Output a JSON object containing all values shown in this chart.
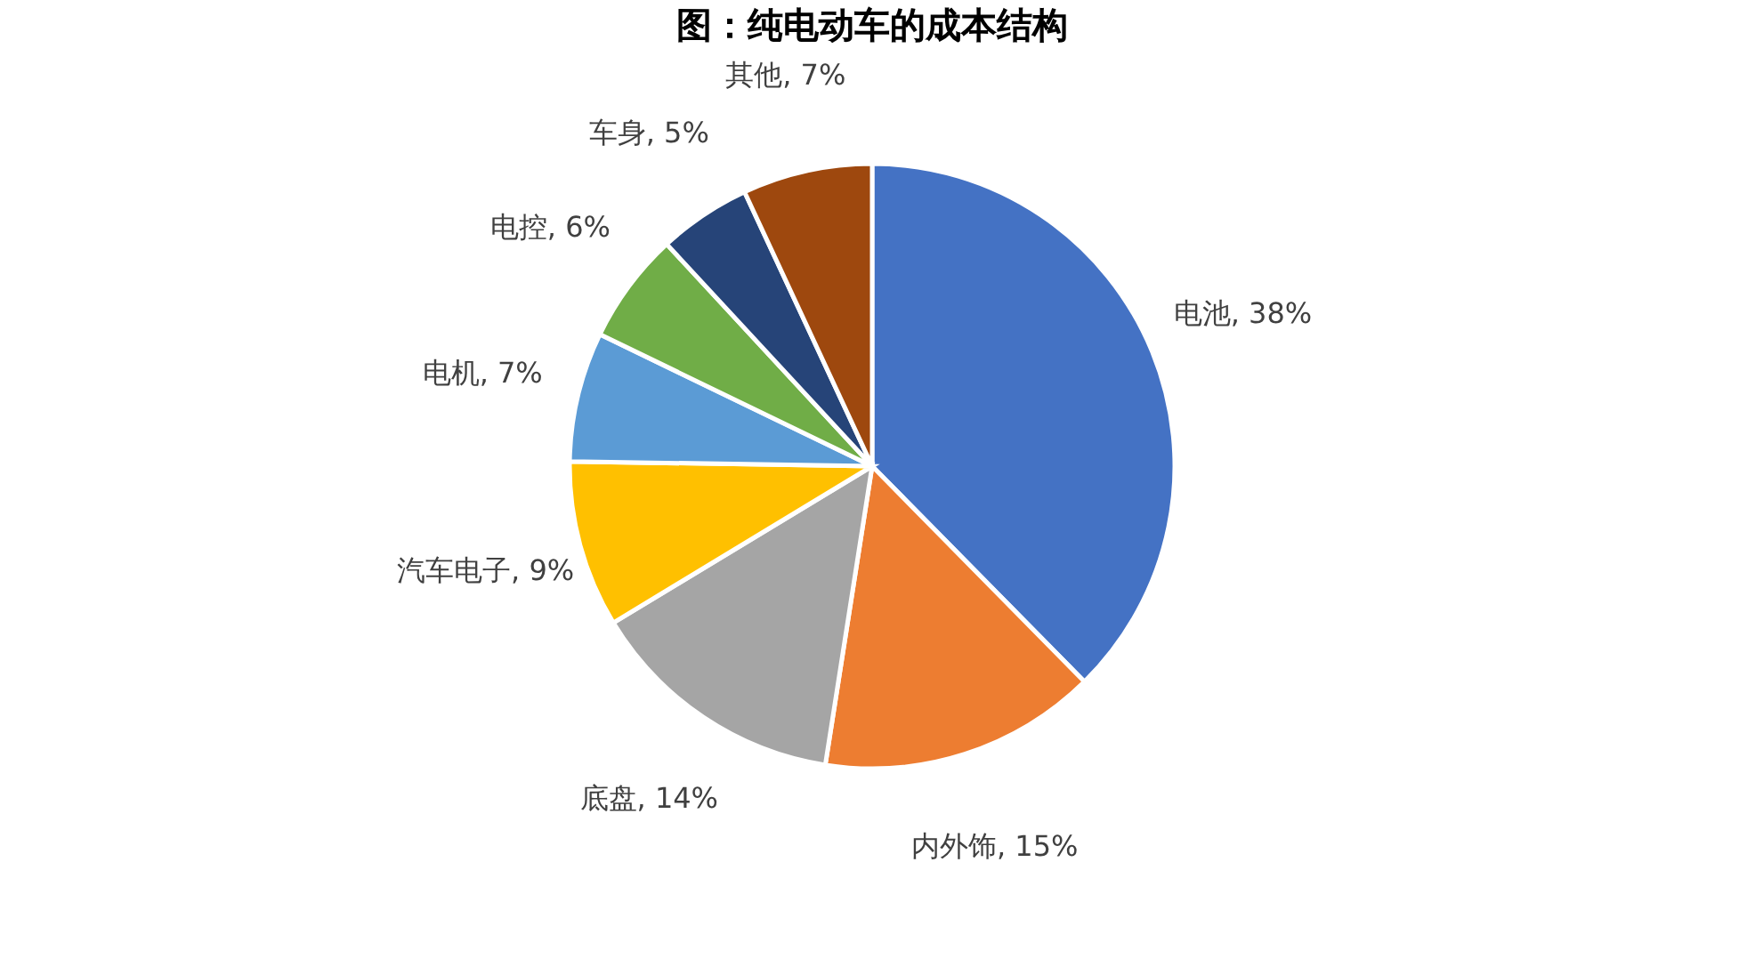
{
  "chart_data": {
    "type": "pie",
    "title": "图：纯电动车的成本结构",
    "categories": [
      "电池",
      "内外饰",
      "底盘",
      "汽车电子",
      "电机",
      "电控",
      "车身",
      "其他"
    ],
    "values": [
      38,
      15,
      14,
      9,
      7,
      6,
      5,
      7
    ],
    "colors": [
      "#4472c4",
      "#ed7d31",
      "#a5a5a5",
      "#ffc000",
      "#5b9bd5",
      "#70ad47",
      "#264478",
      "#9e480e"
    ],
    "value_labels": [
      "38%",
      "15%",
      "14%",
      "9%",
      "7%",
      "6%",
      "5%",
      "7%"
    ],
    "legend": false
  }
}
